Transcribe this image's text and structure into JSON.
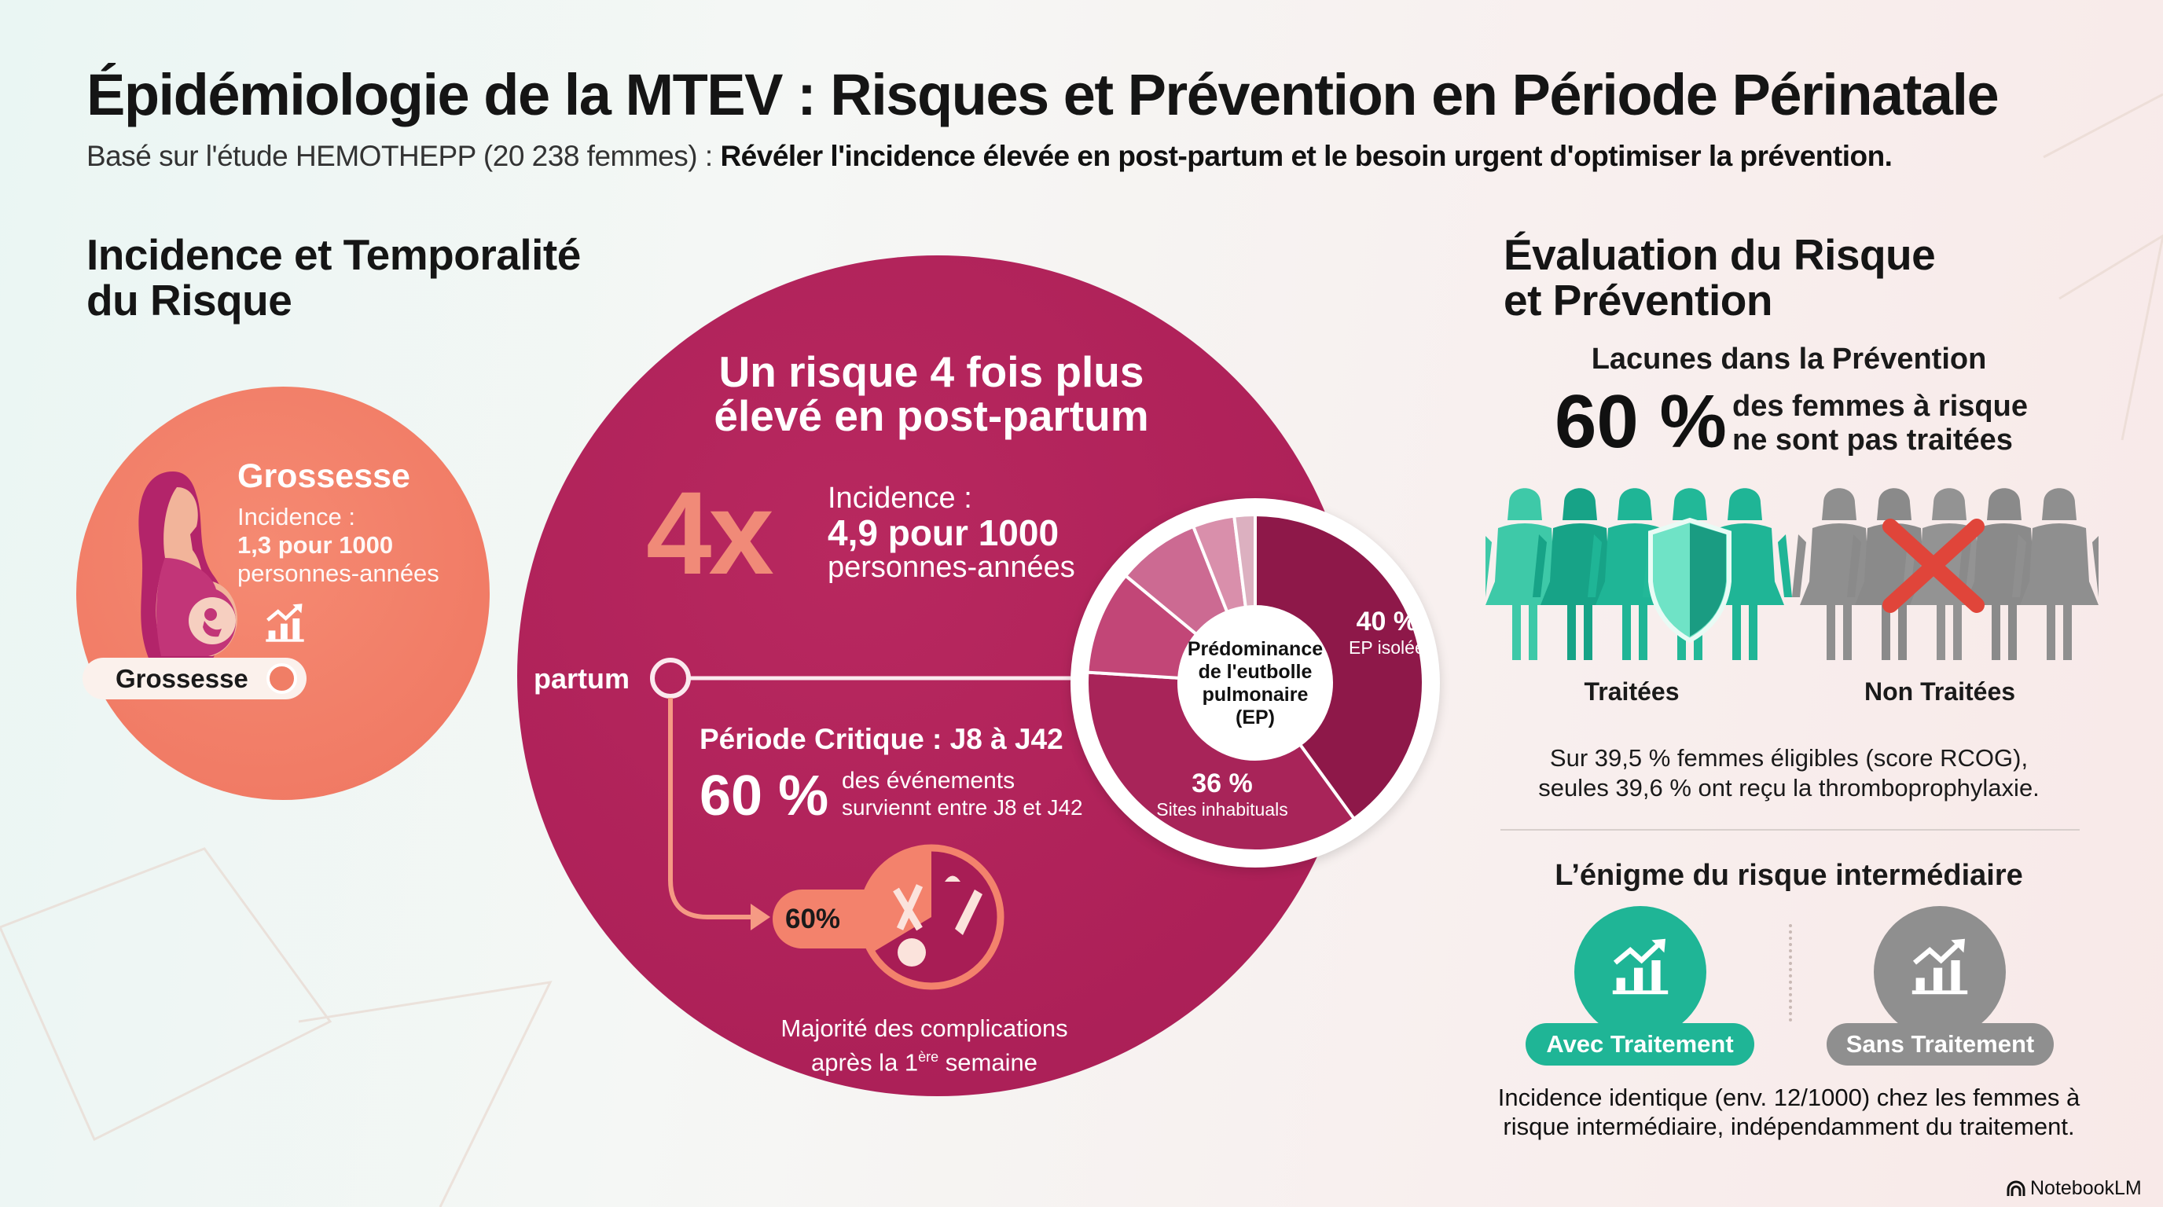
{
  "header": {
    "title": "Épidémiologie de la MTEV : Risques et Prévention en Période Périnatale",
    "subtitle_plain": "Basé sur l'étude HEMOTHEPP (20 238 femmes) : ",
    "subtitle_bold": "Révéler l'incidence élevée en post-partum et le besoin urgent d'optimiser la prévention."
  },
  "left": {
    "heading_line1": "Incidence et Temporalité",
    "heading_line2": "du Risque",
    "pregnancy": {
      "title": "Grossesse",
      "incidence_label": "Incidence :",
      "incidence_value": "1,3 pour 1000",
      "unit": "personnes-années",
      "timeline_label": "Grossesse"
    }
  },
  "postpartum": {
    "headline_line1": "Un risque 4 fois plus",
    "headline_line2": "élevé en post-partum",
    "multiplier": "4x",
    "incidence_label": "Incidence :",
    "incidence_value": "4,9 pour 1000",
    "unit": "personnes-années",
    "timeline_label": "partum",
    "critical_title": "Période Critique : J8 à J42",
    "critical_pct": "60 %",
    "critical_line1": "des événements",
    "critical_line2": "surviennt entre J8 et J42",
    "pill_pct": "60%",
    "complications_line1": "Majorité des complications",
    "complications_line2_pre": "après la 1",
    "complications_sup": "ère",
    "complications_line2_post": " semaine"
  },
  "chart_data": {
    "type": "pie",
    "title": "Prédominance de l'eutbolle pulmonaire (EP)",
    "center_lines": [
      "Prédominance",
      "de l'eutbolle",
      "pulmonaire",
      "(EP)"
    ],
    "slices": [
      {
        "value": 40,
        "label": "40 %",
        "sublabel": "EP isolée",
        "color": "#8e1849"
      },
      {
        "value": 36,
        "label": "36 %",
        "sublabel": "Sites inhabituals",
        "color": "#a82459"
      },
      {
        "value": 10,
        "label": "",
        "sublabel": "",
        "color": "#c24677"
      },
      {
        "value": 8,
        "label": "",
        "sublabel": "",
        "color": "#cc6a92"
      },
      {
        "value": 4,
        "label": "",
        "sublabel": "",
        "color": "#d98fab"
      },
      {
        "value": 2,
        "label": "",
        "sublabel": "",
        "color": "#dcb0c0"
      }
    ]
  },
  "right": {
    "heading_line1": "Évaluation du Risque",
    "heading_line2": "et Prévention",
    "gaps_title": "Lacunes dans la Prévention",
    "gap_pct": "60 %",
    "gap_line1": "des femmes à risque",
    "gap_line2": "ne sont pas traitées",
    "treated_label": "Traitées",
    "untreated_label": "Non Traitées",
    "note_line1": "Sur 39,5 % femmes éligibles (score RCOG),",
    "note_line2": "seules 39,6 % ont reçu la thromboprophylaxie.",
    "enigma_title": "L’énigme du risque intermédiaire",
    "with_treatment": "Avec Traitement",
    "without_treatment": "Sans Traitement",
    "enigma_line1": "Incidence identique (env. 12/1000) chez les femmes à",
    "enigma_line2": "risque intermédiaire, indépendamment du traitement."
  },
  "footer": {
    "brand": "NotebookLM"
  },
  "colors": {
    "teal": "#1fb596",
    "gray": "#8f8f8f",
    "salmon": "#f3826c",
    "magenta": "#a81d55",
    "red": "#e0453a"
  }
}
